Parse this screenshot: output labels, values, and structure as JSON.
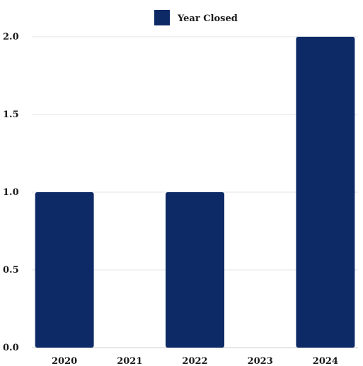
{
  "chart_data": {
    "type": "bar",
    "categories": [
      "2020",
      "2021",
      "2022",
      "2023",
      "2024"
    ],
    "series": [
      {
        "name": "Year Closed",
        "values": [
          1,
          0,
          1,
          0,
          2
        ],
        "color": "#0d2a66"
      }
    ],
    "title": "",
    "xlabel": "",
    "ylabel": "",
    "ylim": [
      0,
      2
    ],
    "yticks": [
      "0.0",
      "0.5",
      "1.0",
      "1.5",
      "2.0"
    ],
    "grid": true,
    "legend": "top-center"
  }
}
